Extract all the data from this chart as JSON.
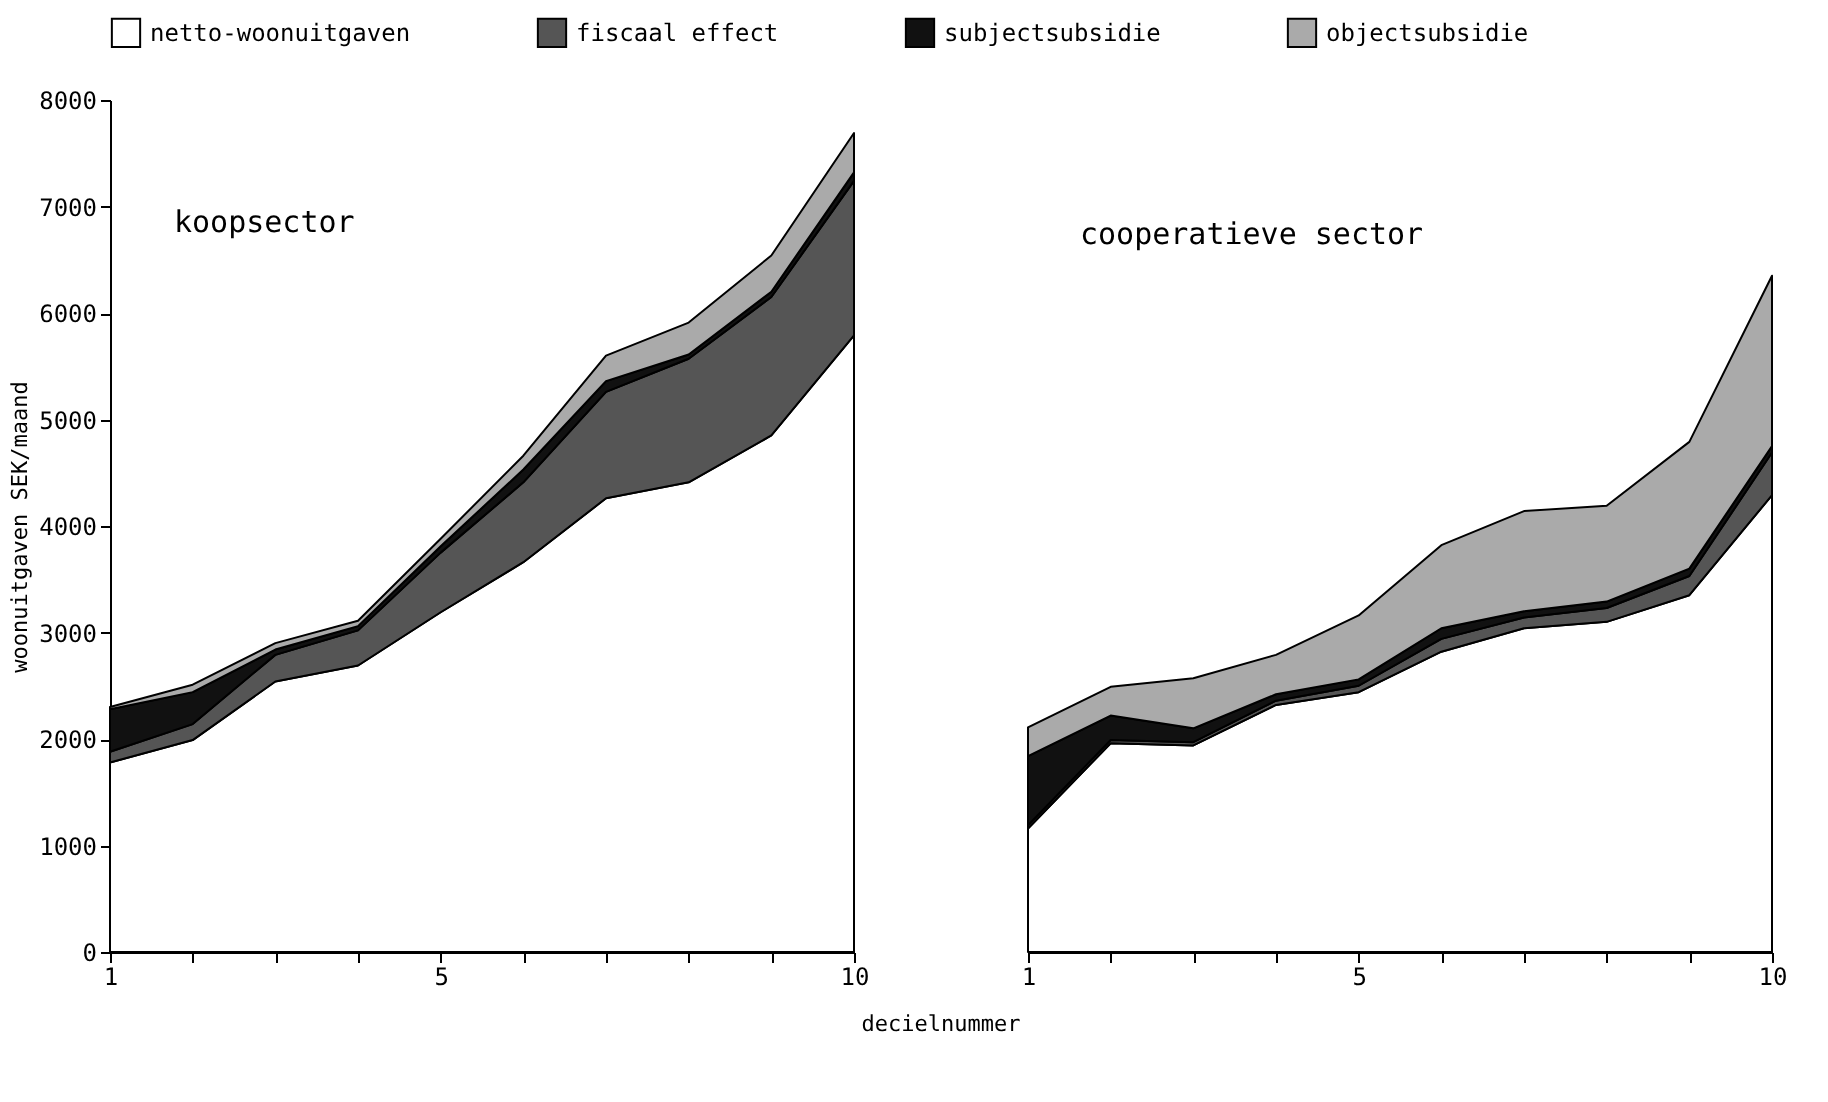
{
  "chart_data": [
    {
      "type": "area",
      "title": "koopsector",
      "xlabel": "decielnummer",
      "ylabel": "woonuitgaven SEK/maand",
      "stacked": true,
      "legend": "top",
      "x": [
        1,
        2,
        3,
        4,
        5,
        6,
        7,
        8,
        9,
        10
      ],
      "xlim": [
        1,
        10
      ],
      "xticks": [
        1,
        {
          "value": 2,
          "label": null
        },
        {
          "value": 3,
          "label": null
        },
        {
          "value": 4,
          "label": null
        },
        5,
        {
          "value": 6,
          "label": null
        },
        {
          "value": 7,
          "label": null
        },
        {
          "value": 8,
          "label": null
        },
        {
          "value": 9,
          "label": null
        },
        10
      ],
      "ylim": [
        0,
        8000
      ],
      "yticks": [
        0,
        1000,
        2000,
        3000,
        4000,
        5000,
        6000,
        7000,
        8000
      ],
      "series": [
        {
          "name": "netto-woonuitgaven",
          "color": "#ffffff",
          "values": [
            1780,
            1990,
            2540,
            2690,
            3190,
            3660,
            4260,
            4410,
            4850,
            5790
          ]
        },
        {
          "name": "fiscaal effect",
          "color": "#555555",
          "values": [
            100,
            150,
            250,
            330,
            560,
            750,
            1000,
            1160,
            1300,
            1450
          ]
        },
        {
          "name": "subjectsubsidie",
          "color": "#111111",
          "values": [
            400,
            300,
            50,
            40,
            60,
            120,
            100,
            40,
            50,
            80
          ]
        },
        {
          "name": "objectsubsidie",
          "color": "#aaaaaa",
          "values": [
            20,
            70,
            60,
            50,
            70,
            130,
            240,
            300,
            340,
            370
          ]
        }
      ]
    },
    {
      "type": "area",
      "title": "cooperatieve sector",
      "stacked": true,
      "tick_labels": "x",
      "x": [
        1,
        2,
        3,
        4,
        5,
        6,
        7,
        8,
        9,
        10
      ],
      "xlim": [
        1,
        10
      ],
      "xticks": [
        1,
        {
          "value": 2,
          "label": null
        },
        {
          "value": 3,
          "label": null
        },
        {
          "value": 4,
          "label": null
        },
        5,
        {
          "value": 6,
          "label": null
        },
        {
          "value": 7,
          "label": null
        },
        {
          "value": 8,
          "label": null
        },
        {
          "value": 9,
          "label": null
        },
        10
      ],
      "ylim": [
        0,
        8000
      ],
      "series": [
        {
          "name": "netto-woonuitgaven",
          "color": "#ffffff",
          "values": [
            1160,
            1960,
            1940,
            2320,
            2440,
            2820,
            3040,
            3100,
            3350,
            4290
          ]
        },
        {
          "name": "fiscaal effect",
          "color": "#555555",
          "values": [
            30,
            30,
            30,
            40,
            60,
            120,
            100,
            130,
            180,
            400
          ]
        },
        {
          "name": "subjectsubsidie",
          "color": "#111111",
          "values": [
            650,
            230,
            130,
            60,
            60,
            100,
            60,
            60,
            70,
            60
          ]
        },
        {
          "name": "objectsubsidie",
          "color": "#aaaaaa",
          "values": [
            270,
            270,
            470,
            370,
            600,
            780,
            940,
            900,
            1190,
            1600
          ]
        }
      ]
    }
  ]
}
